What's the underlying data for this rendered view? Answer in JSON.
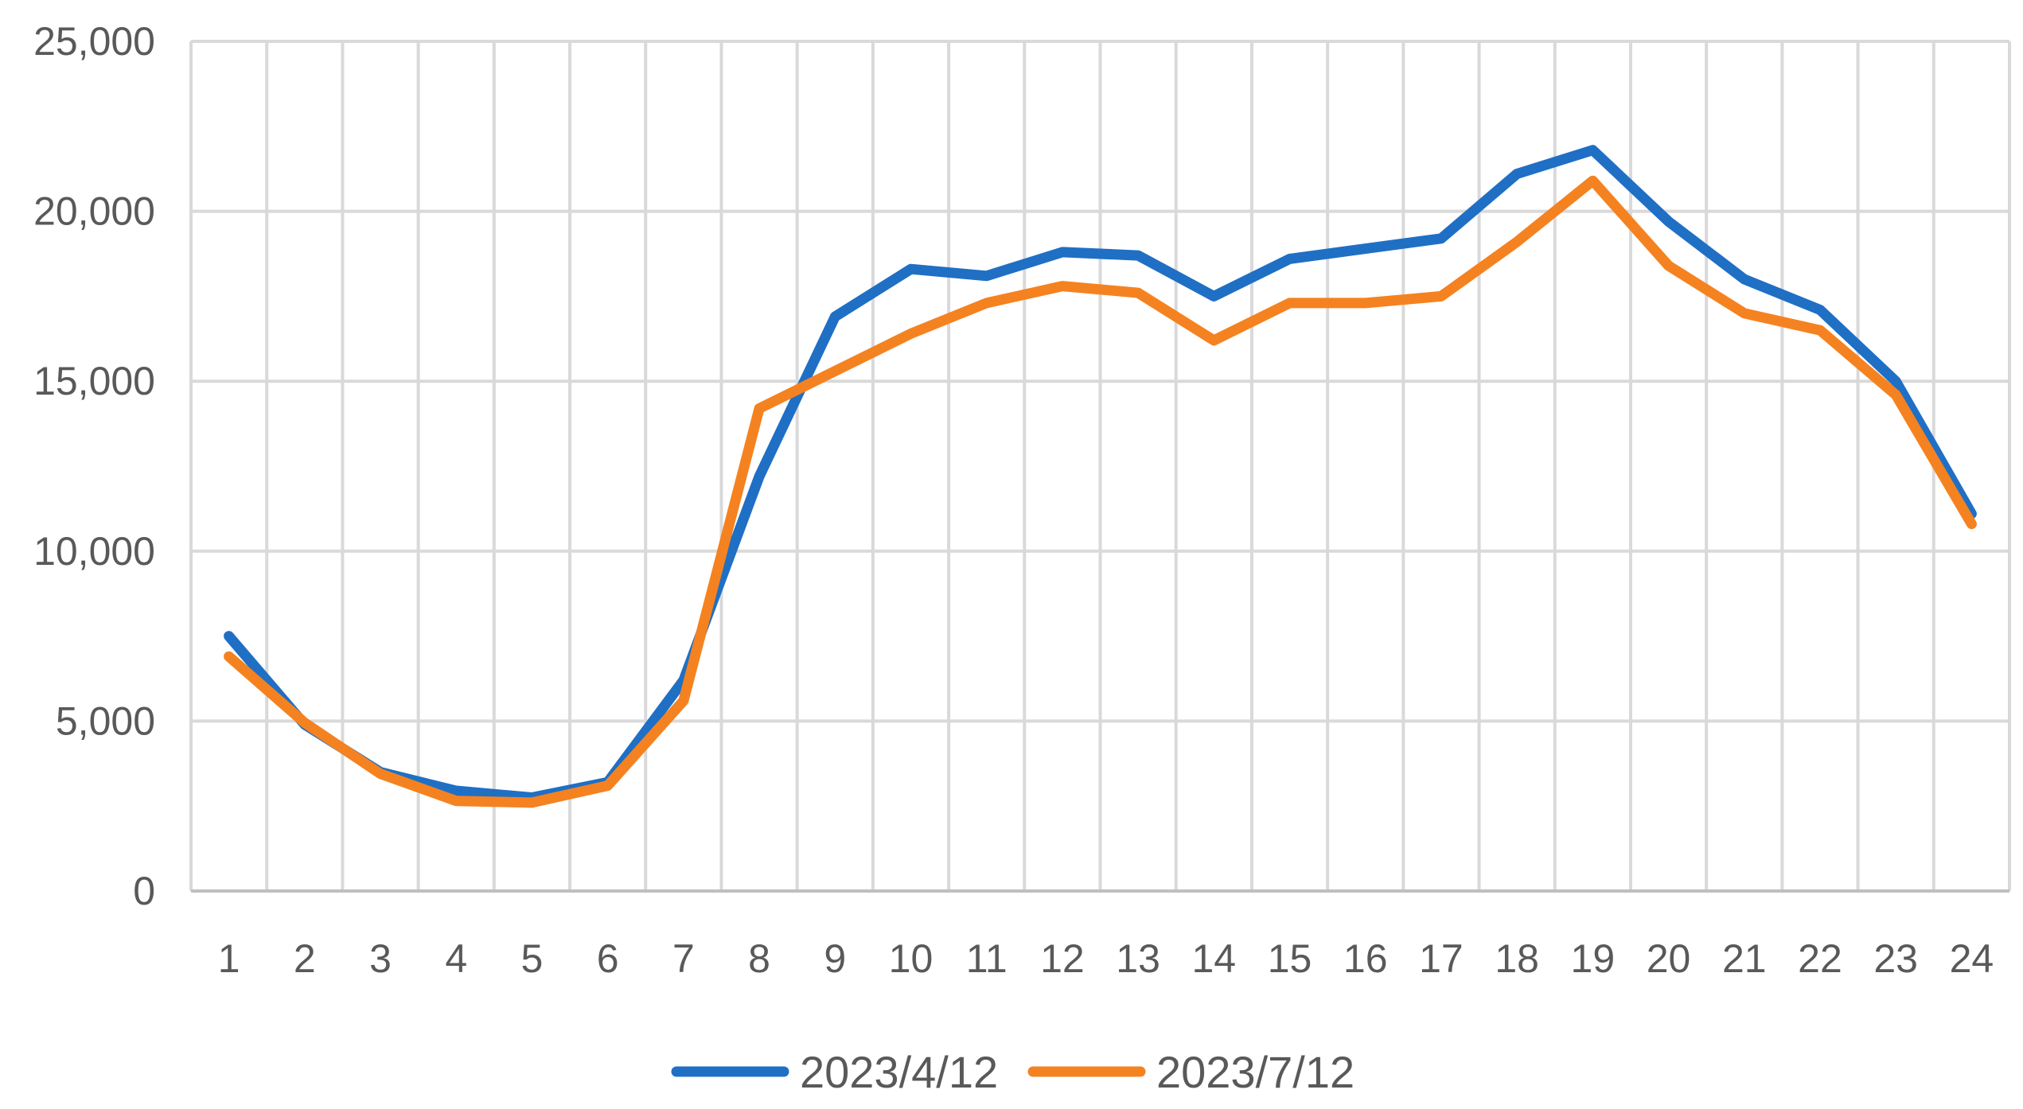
{
  "chart_data": {
    "type": "line",
    "categories": [
      "1",
      "2",
      "3",
      "4",
      "5",
      "6",
      "7",
      "8",
      "9",
      "10",
      "11",
      "12",
      "13",
      "14",
      "15",
      "16",
      "17",
      "18",
      "19",
      "20",
      "21",
      "22",
      "23",
      "24"
    ],
    "series": [
      {
        "name": "2023/4/12",
        "color": "#1f6fc5",
        "values": [
          7500,
          4900,
          3500,
          2950,
          2750,
          3200,
          6200,
          12200,
          16900,
          18300,
          18100,
          18800,
          18700,
          17500,
          18600,
          18900,
          19200,
          21100,
          21800,
          19700,
          18000,
          17100,
          15000,
          11100
        ]
      },
      {
        "name": "2023/7/12",
        "color": "#f58220",
        "values": [
          6900,
          4950,
          3450,
          2650,
          2600,
          3100,
          5600,
          14200,
          15300,
          16400,
          17300,
          17800,
          17600,
          16200,
          17300,
          17300,
          17500,
          19100,
          20900,
          18400,
          17000,
          16500,
          14600,
          10800
        ]
      }
    ],
    "y_ticks": [
      "0",
      "5,000",
      "10,000",
      "15,000",
      "20,000",
      "25,000"
    ],
    "ylim": [
      0,
      25000
    ],
    "grid": true,
    "legend_position": "bottom",
    "title": "",
    "xlabel": "",
    "ylabel": ""
  }
}
